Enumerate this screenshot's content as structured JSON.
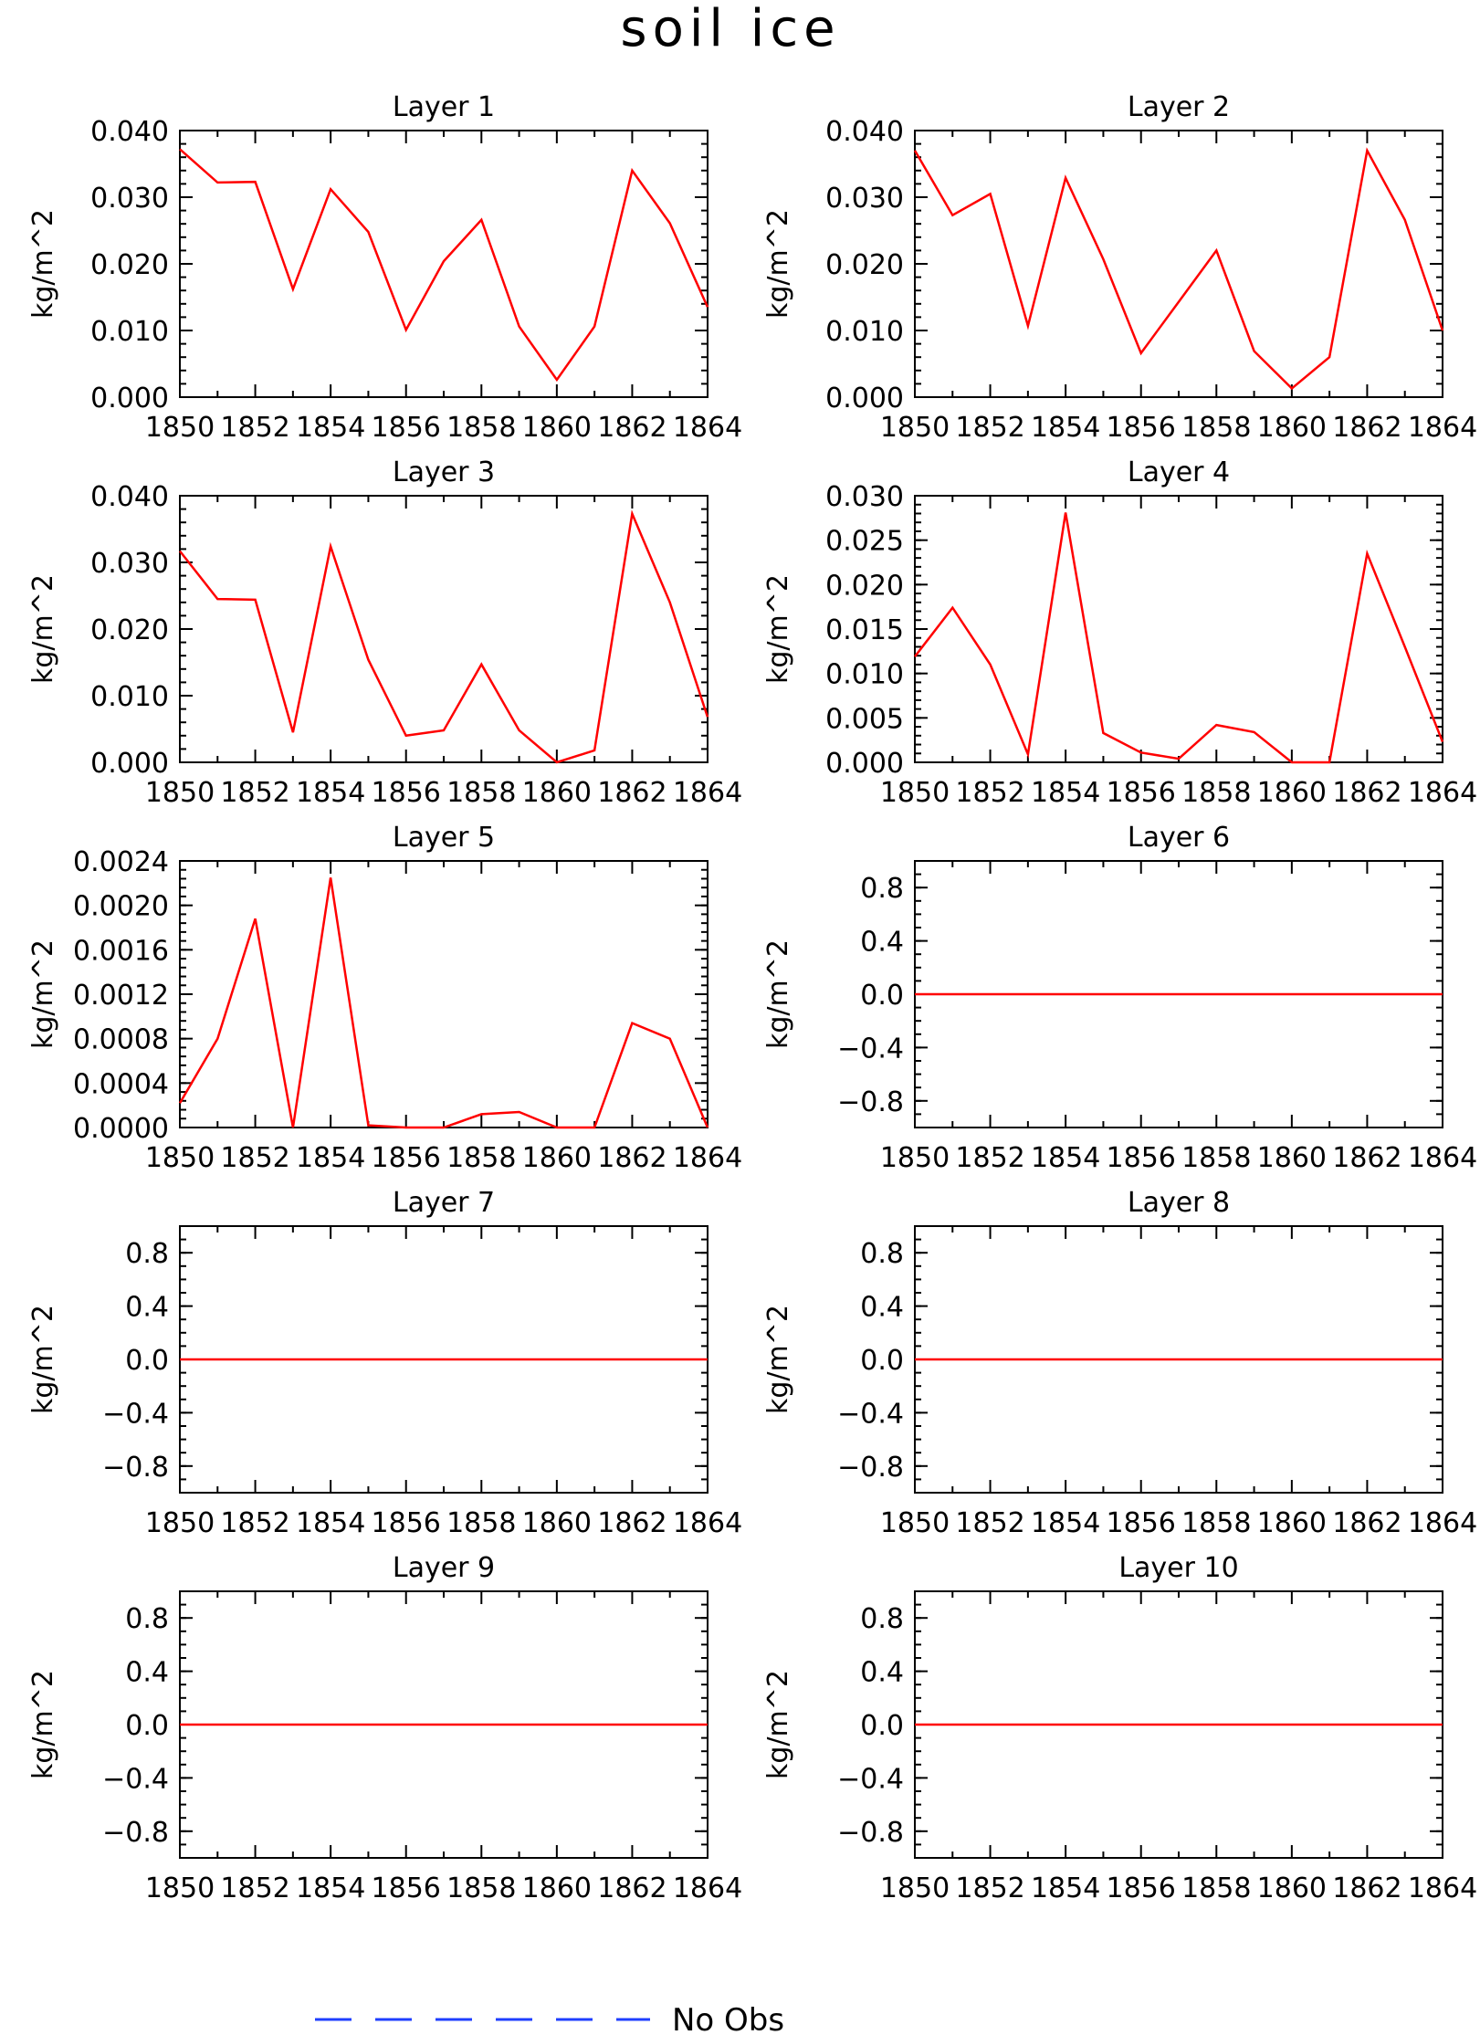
{
  "title": "soil ice",
  "legend": {
    "label": "No Obs",
    "color": "#1f3fff",
    "style": "dashed"
  },
  "colors": {
    "series": "#ff0000",
    "axis": "#000000"
  },
  "chart_data": [
    {
      "type": "line",
      "title": "Layer 1",
      "ylabel": "kg/m^2",
      "x": [
        1850,
        1851,
        1852,
        1853,
        1854,
        1855,
        1856,
        1857,
        1858,
        1859,
        1860,
        1861,
        1862,
        1863,
        1864
      ],
      "values": [
        0.0372,
        0.0322,
        0.0323,
        0.0162,
        0.0312,
        0.0248,
        0.0101,
        0.0204,
        0.0266,
        0.0106,
        0.0026,
        0.0106,
        0.034,
        0.0261,
        0.0135
      ],
      "xlim": [
        1850,
        1864
      ],
      "xticks": [
        "1850",
        "1852",
        "1854",
        "1856",
        "1858",
        "1860",
        "1862",
        "1864"
      ],
      "ylim": [
        0,
        0.04
      ],
      "yticks": [
        "0.000",
        "0.010",
        "0.020",
        "0.030",
        "0.040"
      ]
    },
    {
      "type": "line",
      "title": "Layer 2",
      "ylabel": "kg/m^2",
      "x": [
        1850,
        1851,
        1852,
        1853,
        1854,
        1855,
        1856,
        1857,
        1858,
        1859,
        1860,
        1861,
        1862,
        1863,
        1864
      ],
      "values": [
        0.037,
        0.0273,
        0.0305,
        0.0107,
        0.0329,
        0.0207,
        0.0066,
        0.0143,
        0.022,
        0.0069,
        0.0013,
        0.006,
        0.037,
        0.0266,
        0.01
      ],
      "xlim": [
        1850,
        1864
      ],
      "xticks": [
        "1850",
        "1852",
        "1854",
        "1856",
        "1858",
        "1860",
        "1862",
        "1864"
      ],
      "ylim": [
        0,
        0.04
      ],
      "yticks": [
        "0.000",
        "0.010",
        "0.020",
        "0.030",
        "0.040"
      ]
    },
    {
      "type": "line",
      "title": "Layer 3",
      "ylabel": "kg/m^2",
      "x": [
        1850,
        1851,
        1852,
        1853,
        1854,
        1855,
        1856,
        1857,
        1858,
        1859,
        1860,
        1861,
        1862,
        1863,
        1864
      ],
      "values": [
        0.0317,
        0.0245,
        0.0244,
        0.0045,
        0.0324,
        0.0154,
        0.004,
        0.0048,
        0.0147,
        0.0048,
        0.0,
        0.0018,
        0.0373,
        0.024,
        0.0068
      ],
      "xlim": [
        1850,
        1864
      ],
      "xticks": [
        "1850",
        "1852",
        "1854",
        "1856",
        "1858",
        "1860",
        "1862",
        "1864"
      ],
      "ylim": [
        0,
        0.04
      ],
      "yticks": [
        "0.000",
        "0.010",
        "0.020",
        "0.030",
        "0.040"
      ]
    },
    {
      "type": "line",
      "title": "Layer 4",
      "ylabel": "kg/m^2",
      "x": [
        1850,
        1851,
        1852,
        1853,
        1854,
        1855,
        1856,
        1857,
        1858,
        1859,
        1860,
        1861,
        1862,
        1863,
        1864
      ],
      "values": [
        0.0119,
        0.0174,
        0.011,
        0.0009,
        0.0281,
        0.0033,
        0.0011,
        0.0004,
        0.0042,
        0.0034,
        0.0,
        0.0,
        0.0235,
        0.013,
        0.0023
      ],
      "xlim": [
        1850,
        1864
      ],
      "xticks": [
        "1850",
        "1852",
        "1854",
        "1856",
        "1858",
        "1860",
        "1862",
        "1864"
      ],
      "ylim": [
        0,
        0.03
      ],
      "yticks": [
        "0.000",
        "0.005",
        "0.010",
        "0.015",
        "0.020",
        "0.025",
        "0.030"
      ]
    },
    {
      "type": "line",
      "title": "Layer 5",
      "ylabel": "kg/m^2",
      "x": [
        1850,
        1851,
        1852,
        1853,
        1854,
        1855,
        1856,
        1857,
        1858,
        1859,
        1860,
        1861,
        1862,
        1863,
        1864
      ],
      "values": [
        0.00022,
        0.0008,
        0.00188,
        0.0,
        0.00225,
        2e-05,
        0.0,
        0.0,
        0.00012,
        0.00014,
        0.0,
        0.0,
        0.00094,
        0.0008,
        0.0
      ],
      "xlim": [
        1850,
        1864
      ],
      "xticks": [
        "1850",
        "1852",
        "1854",
        "1856",
        "1858",
        "1860",
        "1862",
        "1864"
      ],
      "ylim": [
        0,
        0.0024
      ],
      "yticks": [
        "0.0000",
        "0.0004",
        "0.0008",
        "0.0012",
        "0.0016",
        "0.0020",
        "0.0024"
      ]
    },
    {
      "type": "line",
      "title": "Layer 6",
      "ylabel": "kg/m^2",
      "x": [
        1850,
        1851,
        1852,
        1853,
        1854,
        1855,
        1856,
        1857,
        1858,
        1859,
        1860,
        1861,
        1862,
        1863,
        1864
      ],
      "values": [
        0,
        0,
        0,
        0,
        0,
        0,
        0,
        0,
        0,
        0,
        0,
        0,
        0,
        0,
        0
      ],
      "xlim": [
        1850,
        1864
      ],
      "xticks": [
        "1850",
        "1852",
        "1854",
        "1856",
        "1858",
        "1860",
        "1862",
        "1864"
      ],
      "ylim": [
        -1,
        1
      ],
      "yticks": [
        "−0.8",
        "−0.4",
        "0.0",
        "0.4",
        "0.8"
      ]
    },
    {
      "type": "line",
      "title": "Layer 7",
      "ylabel": "kg/m^2",
      "x": [
        1850,
        1851,
        1852,
        1853,
        1854,
        1855,
        1856,
        1857,
        1858,
        1859,
        1860,
        1861,
        1862,
        1863,
        1864
      ],
      "values": [
        0,
        0,
        0,
        0,
        0,
        0,
        0,
        0,
        0,
        0,
        0,
        0,
        0,
        0,
        0
      ],
      "xlim": [
        1850,
        1864
      ],
      "xticks": [
        "1850",
        "1852",
        "1854",
        "1856",
        "1858",
        "1860",
        "1862",
        "1864"
      ],
      "ylim": [
        -1,
        1
      ],
      "yticks": [
        "−0.8",
        "−0.4",
        "0.0",
        "0.4",
        "0.8"
      ]
    },
    {
      "type": "line",
      "title": "Layer 8",
      "ylabel": "kg/m^2",
      "x": [
        1850,
        1851,
        1852,
        1853,
        1854,
        1855,
        1856,
        1857,
        1858,
        1859,
        1860,
        1861,
        1862,
        1863,
        1864
      ],
      "values": [
        0,
        0,
        0,
        0,
        0,
        0,
        0,
        0,
        0,
        0,
        0,
        0,
        0,
        0,
        0
      ],
      "xlim": [
        1850,
        1864
      ],
      "xticks": [
        "1850",
        "1852",
        "1854",
        "1856",
        "1858",
        "1860",
        "1862",
        "1864"
      ],
      "ylim": [
        -1,
        1
      ],
      "yticks": [
        "−0.8",
        "−0.4",
        "0.0",
        "0.4",
        "0.8"
      ]
    },
    {
      "type": "line",
      "title": "Layer 9",
      "ylabel": "kg/m^2",
      "x": [
        1850,
        1851,
        1852,
        1853,
        1854,
        1855,
        1856,
        1857,
        1858,
        1859,
        1860,
        1861,
        1862,
        1863,
        1864
      ],
      "values": [
        0,
        0,
        0,
        0,
        0,
        0,
        0,
        0,
        0,
        0,
        0,
        0,
        0,
        0,
        0
      ],
      "xlim": [
        1850,
        1864
      ],
      "xticks": [
        "1850",
        "1852",
        "1854",
        "1856",
        "1858",
        "1860",
        "1862",
        "1864"
      ],
      "ylim": [
        -1,
        1
      ],
      "yticks": [
        "−0.8",
        "−0.4",
        "0.0",
        "0.4",
        "0.8"
      ]
    },
    {
      "type": "line",
      "title": "Layer 10",
      "ylabel": "kg/m^2",
      "x": [
        1850,
        1851,
        1852,
        1853,
        1854,
        1855,
        1856,
        1857,
        1858,
        1859,
        1860,
        1861,
        1862,
        1863,
        1864
      ],
      "values": [
        0,
        0,
        0,
        0,
        0,
        0,
        0,
        0,
        0,
        0,
        0,
        0,
        0,
        0,
        0
      ],
      "xlim": [
        1850,
        1864
      ],
      "xticks": [
        "1850",
        "1852",
        "1854",
        "1856",
        "1858",
        "1860",
        "1862",
        "1864"
      ],
      "ylim": [
        -1,
        1
      ],
      "yticks": [
        "−0.8",
        "−0.4",
        "0.0",
        "0.4",
        "0.8"
      ]
    }
  ]
}
